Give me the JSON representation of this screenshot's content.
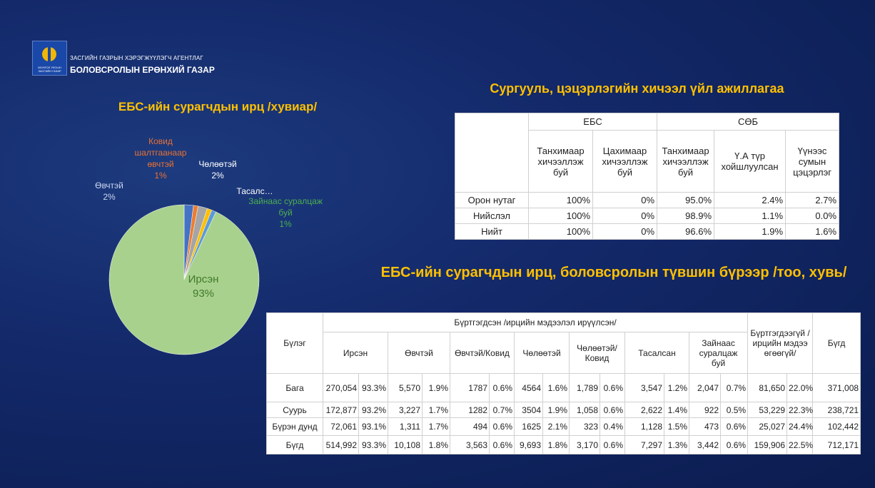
{
  "header": {
    "logo_text": "МОНГОЛ УЛСЫН ЗАСГИЙН ГАЗАР",
    "agency": "ЗАСГИЙН ГАЗРЫН ХЭРЭГЖҮҮЛЭГЧ АГЕНТЛАГ",
    "name": "БОЛОВСРОЛЫН ЕРӨНХИЙ ГАЗАР"
  },
  "chart_data": {
    "type": "pie",
    "title": "ЕБС-ийн сурагчдын ирц /хувиар/",
    "categories": [
      "Өвчтэй",
      "Ковид шалтгаанаар өвчтэй",
      "Чөлөөтэй",
      "Тасалс…",
      "Зайнаас суралцаж буй",
      "Ирсэн"
    ],
    "values": [
      2,
      1,
      2,
      1,
      1,
      93
    ],
    "value_labels": [
      "2%",
      "1%",
      "2%",
      null,
      "1%",
      "93%"
    ],
    "colors": [
      "#4472c4",
      "#ed7d31",
      "#a5a5a5",
      "#ffc000",
      "#5b9bd5",
      "#a9d18e"
    ]
  },
  "table1": {
    "title": "Сургууль, цэцэрлэгийн хичээл үйл ажиллагаа",
    "groups": [
      {
        "label": "ЕБС",
        "columns": [
          "Танхимаар хичээллэж буй",
          "Цахимаар хичээллэж буй"
        ]
      },
      {
        "label": "СӨБ",
        "columns": [
          "Танхимаар хичээллэж буй",
          "Ү.А түр хойшлуулсан",
          "Үүнээс сумын цэцэрлэг"
        ]
      }
    ],
    "rows": [
      {
        "label": "Орон нутаг",
        "cells": [
          "100%",
          "0%",
          "95.0%",
          "2.4%",
          "2.7%"
        ]
      },
      {
        "label": "Нийслэл",
        "cells": [
          "100%",
          "0%",
          "98.9%",
          "1.1%",
          "0.0%"
        ]
      },
      {
        "label": "Нийт",
        "cells": [
          "100%",
          "0%",
          "96.6%",
          "1.9%",
          "1.6%"
        ]
      }
    ]
  },
  "table2": {
    "title": "ЕБС-ийн сурагчдын ирц, боловсролын түвшин бүрээр /тоо, хувь/",
    "row_header": "Бүлэг",
    "group": "Бүртгэгдсэн /ирцийн мэдээлэл ирүүлсэн/",
    "columns": [
      "Ирсэн",
      "Өвчтэй",
      "Өвчтэй/Ковид",
      "Чөлөөтэй",
      "Чөлөөтэй/Ковид",
      "Тасалсан",
      "Зайнаас суралцаж буй"
    ],
    "unregistered": "Бүртгэгдээгүй /ирцийн мэдээ өгөөгүй/",
    "total": "Бүгд",
    "rows": [
      {
        "label": "Бага",
        "cells": [
          "270,054",
          "93.3%",
          "5,570",
          "1.9%",
          "1787",
          "0.6%",
          "4564",
          "1.6%",
          "1,789",
          "0.6%",
          "3,547",
          "1.2%",
          "2,047",
          "0.7%",
          "81,650",
          "22.0%",
          "371,008"
        ]
      },
      {
        "label": "Суурь",
        "cells": [
          "172,877",
          "93.2%",
          "3,227",
          "1.7%",
          "1282",
          "0.7%",
          "3504",
          "1.9%",
          "1,058",
          "0.6%",
          "2,622",
          "1.4%",
          "922",
          "0.5%",
          "53,229",
          "22.3%",
          "238,721"
        ]
      },
      {
        "label": "Бүрэн дунд",
        "cells": [
          "72,061",
          "93.1%",
          "1,311",
          "1.7%",
          "494",
          "0.6%",
          "1625",
          "2.1%",
          "323",
          "0.4%",
          "1,128",
          "1.5%",
          "473",
          "0.6%",
          "25,027",
          "24.4%",
          "102,442"
        ]
      },
      {
        "label": "Бүгд",
        "cells": [
          "514,992",
          "93.3%",
          "10,108",
          "1.8%",
          "3,563",
          "0.6%",
          "9,693",
          "1.8%",
          "3,170",
          "0.6%",
          "7,297",
          "1.3%",
          "3,442",
          "0.6%",
          "159,906",
          "22.5%",
          "712,171"
        ]
      }
    ]
  }
}
